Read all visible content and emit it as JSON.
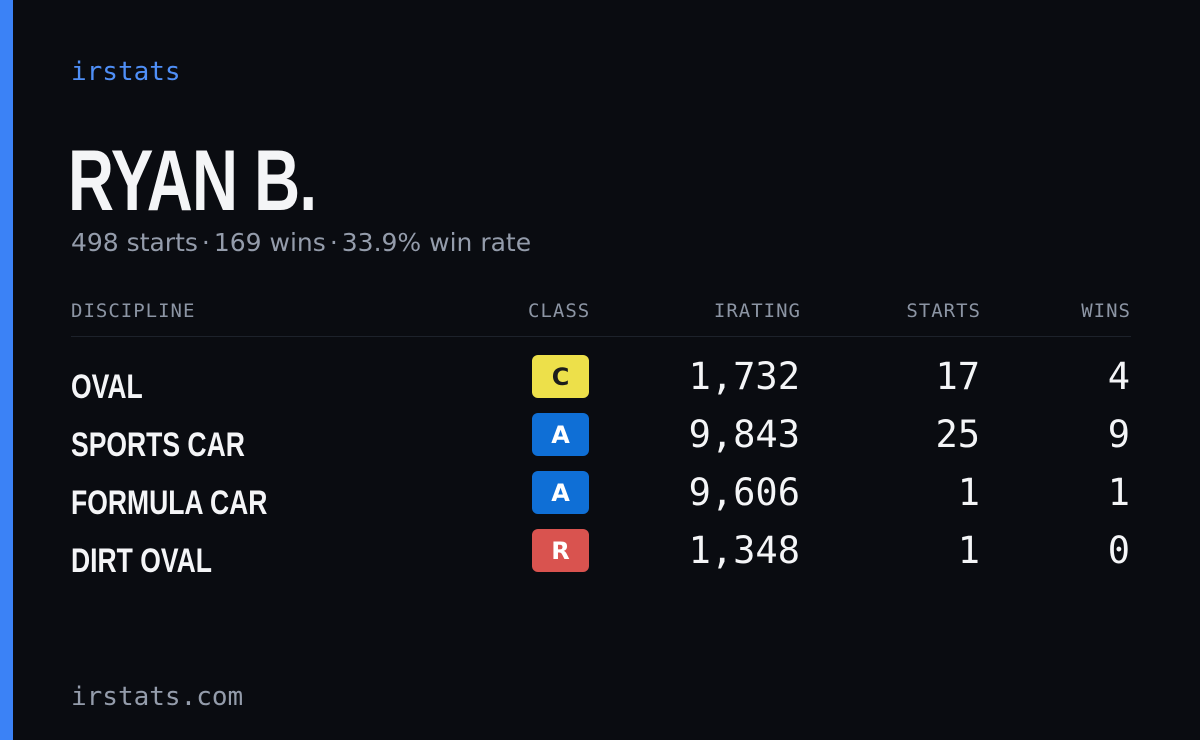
{
  "brand": "irstats",
  "driver": {
    "name": "RYAN B.",
    "starts_text": "498 starts",
    "wins_text": "169 wins",
    "win_rate_text": "33.9% win rate",
    "separator": "·"
  },
  "table": {
    "headers": {
      "discipline": "DISCIPLINE",
      "class": "CLASS",
      "irating": "IRATING",
      "starts": "STARTS",
      "wins": "WINS"
    },
    "rows": [
      {
        "discipline": "OVAL",
        "class": "C",
        "class_color": "#ede04a",
        "class_text_color": "#1c1c1c",
        "irating": "1,732",
        "starts": "17",
        "wins": "4"
      },
      {
        "discipline": "SPORTS CAR",
        "class": "A",
        "class_color": "#0f6fd6",
        "class_text_color": "#ffffff",
        "irating": "9,843",
        "starts": "25",
        "wins": "9"
      },
      {
        "discipline": "FORMULA CAR",
        "class": "A",
        "class_color": "#0f6fd6",
        "class_text_color": "#ffffff",
        "irating": "9,606",
        "starts": "1",
        "wins": "1"
      },
      {
        "discipline": "DIRT OVAL",
        "class": "R",
        "class_color": "#d9534f",
        "class_text_color": "#ffffff",
        "irating": "1,348",
        "starts": "1",
        "wins": "0"
      }
    ]
  },
  "footer": {
    "url": "irstats.com"
  },
  "colors": {
    "accent": "#3b82f6",
    "background": "#0a0c11"
  }
}
